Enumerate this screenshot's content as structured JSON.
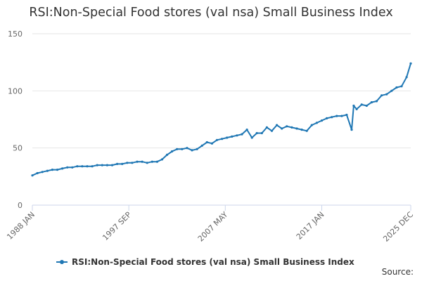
{
  "chart_data": {
    "type": "line",
    "title": "RSI:Non-Special Food stores (val nsa) Small Business Index",
    "xlabel": "",
    "ylabel": "",
    "ylim": [
      0,
      150
    ],
    "yticks": [
      0,
      50,
      100,
      150
    ],
    "xlim": [
      1988.0,
      2025.917
    ],
    "xtick_labels": [
      {
        "label": "1988 JAN",
        "x": 1988.0
      },
      {
        "label": "1997 SEP",
        "x": 1997.667
      },
      {
        "label": "2007 MAY",
        "x": 2007.333
      },
      {
        "label": "2017 JAN",
        "x": 2017.0
      },
      {
        "label": "2025 DEC",
        "x": 2025.917
      }
    ],
    "grid": true,
    "legend_position": "bottom",
    "series": [
      {
        "name": "RSI:Non-Special Food stores (val nsa) Small Business Index",
        "color": "#1f77b4",
        "x": [
          1988.0,
          1988.5,
          1989.0,
          1989.5,
          1990.0,
          1990.5,
          1991.0,
          1991.5,
          1992.0,
          1992.5,
          1993.0,
          1993.5,
          1994.0,
          1994.5,
          1995.0,
          1995.5,
          1996.0,
          1996.5,
          1997.0,
          1997.5,
          1998.0,
          1998.5,
          1999.0,
          1999.5,
          2000.0,
          2000.5,
          2001.0,
          2001.5,
          2002.0,
          2002.5,
          2003.0,
          2003.5,
          2004.0,
          2004.5,
          2005.0,
          2005.5,
          2006.0,
          2006.5,
          2007.0,
          2007.5,
          2008.0,
          2008.5,
          2009.0,
          2009.5,
          2010.0,
          2010.5,
          2011.0,
          2011.5,
          2012.0,
          2012.5,
          2013.0,
          2013.5,
          2014.0,
          2014.5,
          2015.0,
          2015.5,
          2016.0,
          2016.5,
          2017.0,
          2017.5,
          2018.0,
          2018.5,
          2019.0,
          2019.5,
          2020.0,
          2020.2,
          2020.5,
          2021.0,
          2021.5,
          2022.0,
          2022.5,
          2023.0,
          2023.5,
          2024.0,
          2024.5,
          2025.0,
          2025.5,
          2025.917
        ],
        "values": [
          26,
          28,
          29,
          30,
          31,
          31,
          32,
          33,
          33,
          34,
          34,
          34,
          34,
          35,
          35,
          35,
          35,
          36,
          36,
          37,
          37,
          38,
          38,
          37,
          38,
          38,
          40,
          44,
          47,
          49,
          49,
          50,
          48,
          49,
          52,
          55,
          54,
          57,
          58,
          59,
          60,
          61,
          62,
          66,
          59,
          63,
          63,
          68,
          65,
          70,
          67,
          69,
          68,
          67,
          66,
          65,
          70,
          72,
          74,
          76,
          77,
          78,
          78,
          79,
          66,
          87,
          84,
          88,
          87,
          90,
          91,
          96,
          97,
          100,
          103,
          104,
          112,
          124
        ]
      }
    ]
  },
  "source_label": "Source:"
}
